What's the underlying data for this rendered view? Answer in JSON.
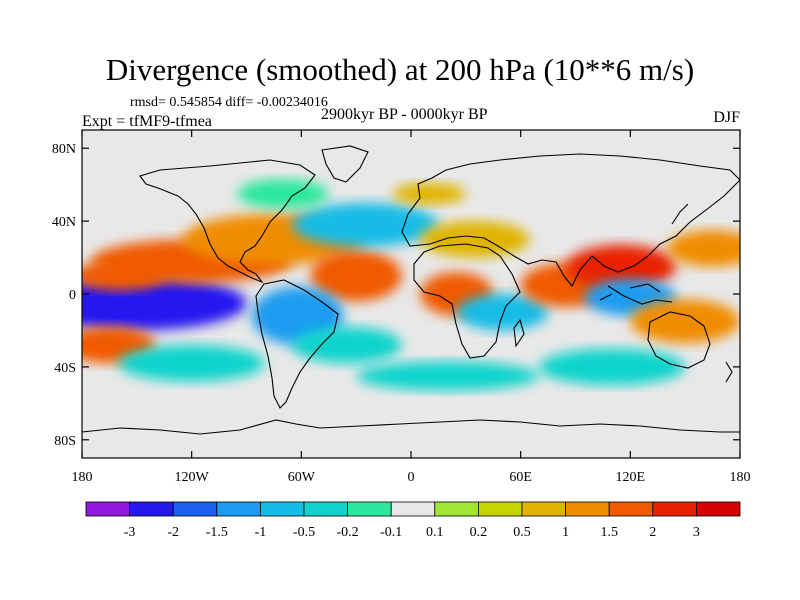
{
  "header": {
    "title": "Divergence (smoothed) at 200 hPa (10**6 m/s)",
    "stats": "rmsd= 0.545854 diff= -0.00234016",
    "experiment": "Expt = tfMF9-tfmea",
    "period": "2900kyr BP - 0000kyr BP",
    "season": "DJF"
  },
  "map": {
    "lat_labels": [
      "80N",
      "40N",
      "0",
      "40S",
      "80S"
    ],
    "lon_labels": [
      "180",
      "120W",
      "60W",
      "0",
      "60E",
      "120E",
      "180"
    ],
    "background_color": "#e8e8e8",
    "features": [
      {
        "lon": -150,
        "lat": -5,
        "rx": 60,
        "ry": 15,
        "value": -3
      },
      {
        "lon": -160,
        "lat": 10,
        "rx": 25,
        "ry": 8,
        "value": 1.5
      },
      {
        "lon": -165,
        "lat": -28,
        "rx": 25,
        "ry": 10,
        "value": 1.5
      },
      {
        "lon": -120,
        "lat": 18,
        "rx": 55,
        "ry": 12,
        "value": 1.5
      },
      {
        "lon": -75,
        "lat": 30,
        "rx": 50,
        "ry": 14,
        "value": 1
      },
      {
        "lon": -30,
        "lat": 10,
        "rx": 25,
        "ry": 14,
        "value": 1.5
      },
      {
        "lon": -62,
        "lat": -12,
        "rx": 25,
        "ry": 16,
        "value": -1.5
      },
      {
        "lon": -35,
        "lat": -28,
        "rx": 30,
        "ry": 10,
        "value": -0.5
      },
      {
        "lon": -120,
        "lat": -38,
        "rx": 40,
        "ry": 10,
        "value": -0.5
      },
      {
        "lon": -25,
        "lat": 38,
        "rx": 40,
        "ry": 12,
        "value": -1
      },
      {
        "lon": 25,
        "lat": 0,
        "rx": 20,
        "ry": 12,
        "value": 1.5
      },
      {
        "lon": 50,
        "lat": -10,
        "rx": 25,
        "ry": 10,
        "value": -1
      },
      {
        "lon": 85,
        "lat": 5,
        "rx": 25,
        "ry": 12,
        "value": 1.5
      },
      {
        "lon": 115,
        "lat": 15,
        "rx": 30,
        "ry": 12,
        "value": 2
      },
      {
        "lon": 120,
        "lat": -2,
        "rx": 25,
        "ry": 10,
        "value": -1.5
      },
      {
        "lon": 150,
        "lat": -15,
        "rx": 30,
        "ry": 12,
        "value": 1
      },
      {
        "lon": 165,
        "lat": 25,
        "rx": 25,
        "ry": 10,
        "value": 1
      },
      {
        "lon": 35,
        "lat": 30,
        "rx": 30,
        "ry": 10,
        "value": 0.5
      },
      {
        "lon": 20,
        "lat": -45,
        "rx": 50,
        "ry": 8,
        "value": -0.5
      },
      {
        "lon": 110,
        "lat": -40,
        "rx": 40,
        "ry": 10,
        "value": -0.5
      },
      {
        "lon": -70,
        "lat": 55,
        "rx": 25,
        "ry": 8,
        "value": -0.2
      },
      {
        "lon": 10,
        "lat": 55,
        "rx": 20,
        "ry": 6,
        "value": 0.5
      }
    ]
  },
  "colorbar": {
    "labels": [
      "-3",
      "-2",
      "-1.5",
      "-1",
      "-0.5",
      "-0.2",
      "-0.1",
      "0.1",
      "0.2",
      "0.5",
      "1",
      "1.5",
      "2",
      "3"
    ],
    "colors": [
      "#9018e0",
      "#2818f0",
      "#1c60f0",
      "#1c9cf0",
      "#14bce6",
      "#10d4cc",
      "#2ce89c",
      "#e8e8e8",
      "#a0e632",
      "#c8d400",
      "#e0b400",
      "#f08c00",
      "#f05a00",
      "#e82000",
      "#d80000"
    ]
  }
}
